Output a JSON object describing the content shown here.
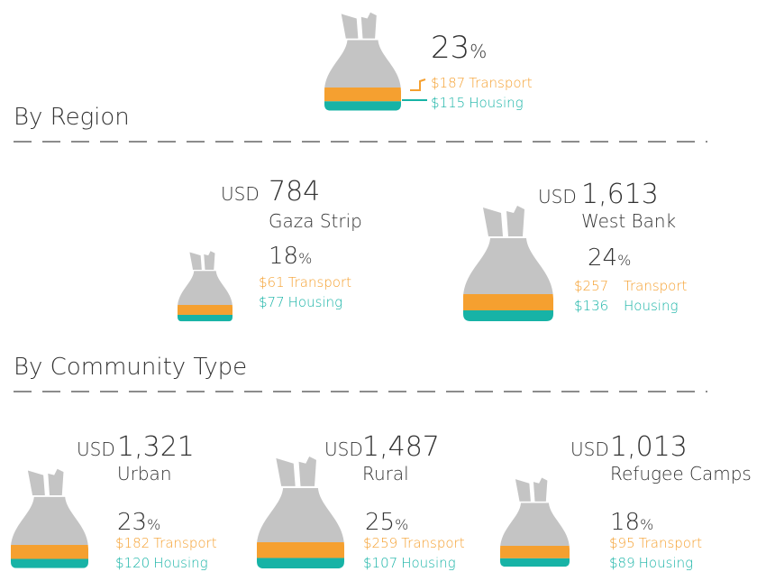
{
  "header": {
    "percent": "23",
    "percent_sign": "%",
    "transport_amount": "$187",
    "transport_label": "Transport",
    "housing_amount": "$115",
    "housing_label": "Housing"
  },
  "sections": [
    {
      "title": "By Region",
      "items": [
        {
          "currency": "USD",
          "amount": "784",
          "name": "Gaza Strip",
          "percent": "18",
          "percent_sign": "%",
          "transport_amount": "$61",
          "transport_label": "Transport",
          "housing_amount": "$77",
          "housing_label": "Housing"
        },
        {
          "currency": "USD",
          "amount": "1,613",
          "name": "West Bank",
          "percent": "24",
          "percent_sign": "%",
          "transport_amount": "$257",
          "transport_label": "Transport",
          "housing_amount": "$136",
          "housing_label": "Housing"
        }
      ]
    },
    {
      "title": "By Community Type",
      "items": [
        {
          "currency": "USD",
          "amount": "1,321",
          "name": "Urban",
          "percent": "23",
          "percent_sign": "%",
          "transport_amount": "$182",
          "transport_label": "Transport",
          "housing_amount": "$120",
          "housing_label": "Housing"
        },
        {
          "currency": "USD",
          "amount": "1,487",
          "name": "Rural",
          "percent": "25",
          "percent_sign": "%",
          "transport_amount": "$259",
          "transport_label": "Transport",
          "housing_amount": "$107",
          "housing_label": "Housing"
        },
        {
          "currency": "USD",
          "amount": "1,013",
          "name": "Refugee Camps",
          "percent": "18",
          "percent_sign": "%",
          "transport_amount": "$95",
          "transport_label": "Transport",
          "housing_amount": "$89",
          "housing_label": "Housing"
        }
      ]
    }
  ]
}
